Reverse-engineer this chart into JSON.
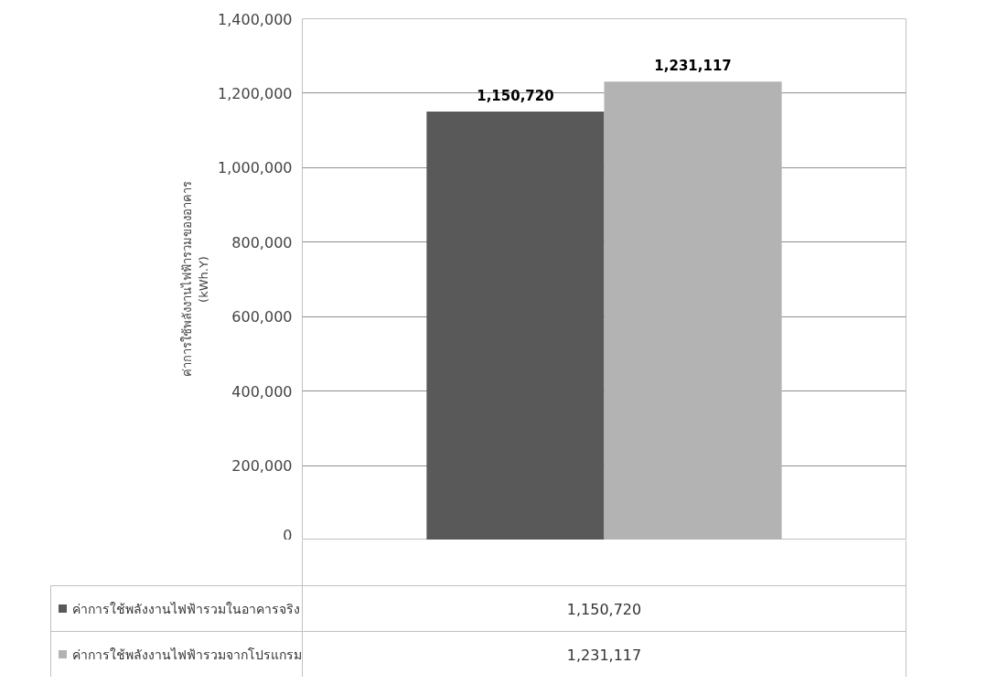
{
  "chart_data": {
    "type": "bar",
    "categories": [
      null
    ],
    "ylabel": "ค่าการใช้พลังงานไฟฟ้ารวมของอาคาร\n(kWh.Y)",
    "series": [
      {
        "name": "ค่าการใช้พลังงานไฟฟ้ารวมในอาคารจริง",
        "color": "#595959",
        "values": [
          1150720
        ],
        "value_labels": [
          "1,150,720"
        ]
      },
      {
        "name": "ค่าการใช้พลังงานไฟฟ้ารวมจากโปรแกรม",
        "color": "#b3b3b3",
        "values": [
          1231117
        ],
        "value_labels": [
          "1,231,117"
        ]
      }
    ],
    "ylim": [
      0,
      1400000
    ],
    "yticks": [
      {
        "value": 0,
        "label": "0"
      },
      {
        "value": 200000,
        "label": "200,000"
      },
      {
        "value": 400000,
        "label": "400,000"
      },
      {
        "value": 600000,
        "label": "600,000"
      },
      {
        "value": 800000,
        "label": "800,000"
      },
      {
        "value": 1000000,
        "label": "1,000,000"
      },
      {
        "value": 1200000,
        "label": "1,200,000"
      },
      {
        "value": 1400000,
        "label": "1,400,000"
      }
    ],
    "grid": "y",
    "legend": "bottom"
  }
}
